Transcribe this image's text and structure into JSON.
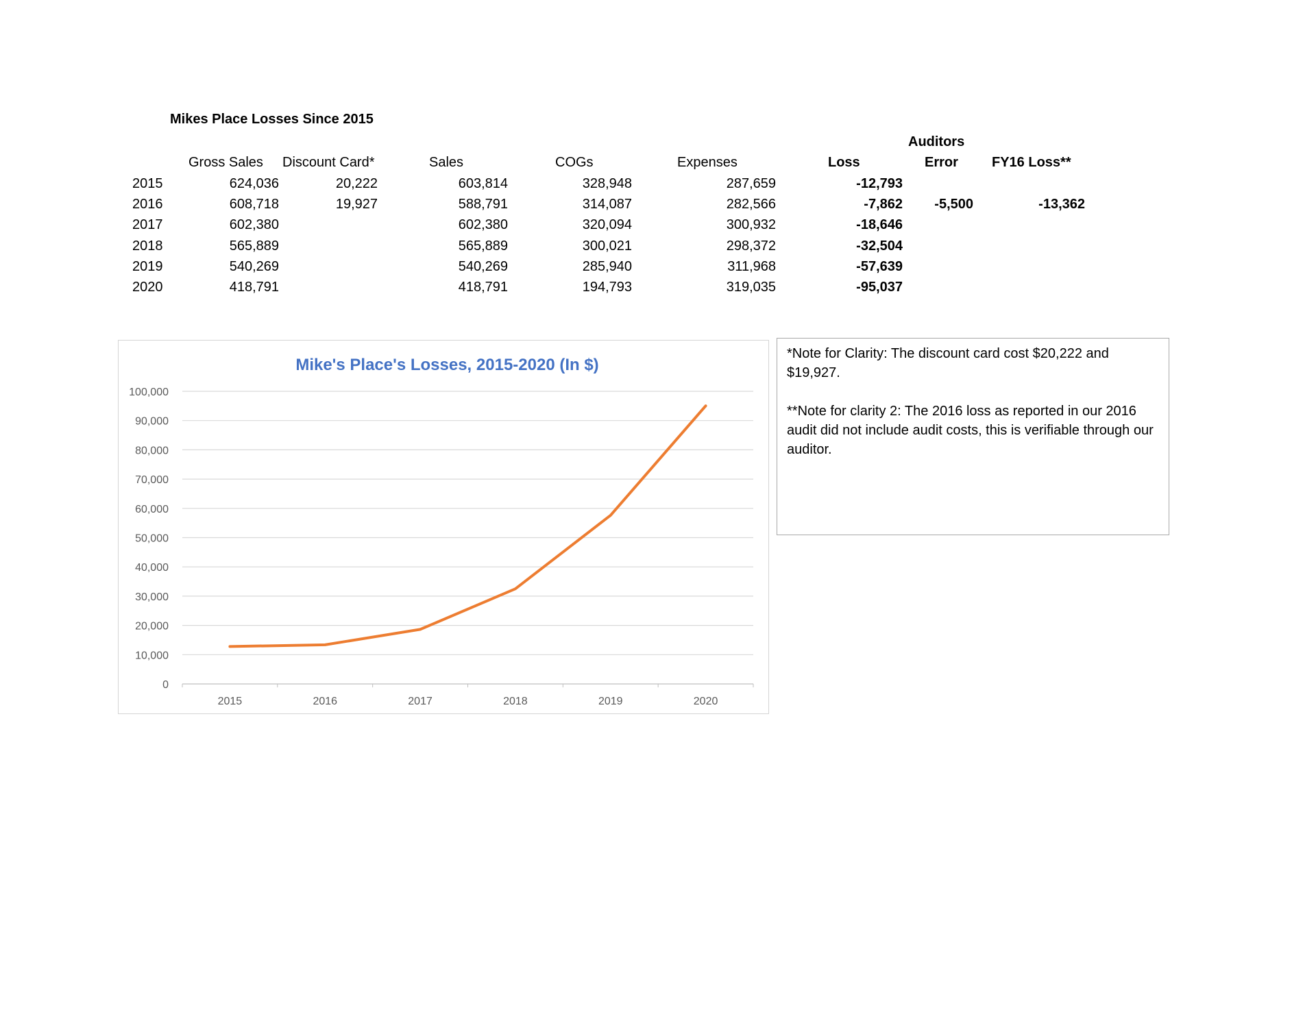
{
  "sheet": {
    "title": "Mikes Place Losses Since 2015",
    "header_top": {
      "auditors": "Auditors"
    },
    "headers": {
      "gross_sales": "Gross Sales",
      "discount_card": "Discount Card*",
      "sales": "Sales",
      "cogs": "COGs",
      "expenses": "Expenses",
      "loss": "Loss",
      "error": "Error",
      "fy16": "FY16 Loss**"
    },
    "rows": [
      {
        "year": "2015",
        "gross_sales": "624,036",
        "discount_card": "20,222",
        "sales": "603,814",
        "cogs": "328,948",
        "expenses": "287,659",
        "loss": "-12,793",
        "error": "",
        "fy16": ""
      },
      {
        "year": "2016",
        "gross_sales": "608,718",
        "discount_card": "19,927",
        "sales": "588,791",
        "cogs": "314,087",
        "expenses": "282,566",
        "loss": "-7,862",
        "error": "-5,500",
        "fy16": "-13,362"
      },
      {
        "year": "2017",
        "gross_sales": "602,380",
        "discount_card": "",
        "sales": "602,380",
        "cogs": "320,094",
        "expenses": "300,932",
        "loss": "-18,646",
        "error": "",
        "fy16": ""
      },
      {
        "year": "2018",
        "gross_sales": "565,889",
        "discount_card": "",
        "sales": "565,889",
        "cogs": "300,021",
        "expenses": "298,372",
        "loss": "-32,504",
        "error": "",
        "fy16": ""
      },
      {
        "year": "2019",
        "gross_sales": "540,269",
        "discount_card": "",
        "sales": "540,269",
        "cogs": "285,940",
        "expenses": "311,968",
        "loss": "-57,639",
        "error": "",
        "fy16": ""
      },
      {
        "year": "2020",
        "gross_sales": "418,791",
        "discount_card": "",
        "sales": "418,791",
        "cogs": "194,793",
        "expenses": "319,035",
        "loss": "-95,037",
        "error": "",
        "fy16": ""
      }
    ]
  },
  "notes": {
    "note1": "*Note for Clarity: The discount card cost $20,222 and $19,927.",
    "note2": "**Note for clarity 2: The 2016 loss as reported in our 2016 audit did not include audit costs, this is verifiable through our auditor."
  },
  "chart_data": {
    "type": "line",
    "title": "Mike's Place's Losses, 2015-2020 (In $)",
    "xlabel": "",
    "ylabel": "",
    "categories": [
      "2015",
      "2016",
      "2017",
      "2018",
      "2019",
      "2020"
    ],
    "series": [
      {
        "values": [
          12793,
          13362,
          18646,
          32504,
          57639,
          95037
        ],
        "color": "#ED7D31"
      }
    ],
    "ylim": [
      0,
      100000
    ],
    "yticks": [
      0,
      10000,
      20000,
      30000,
      40000,
      50000,
      60000,
      70000,
      80000,
      90000,
      100000
    ],
    "ytick_labels": [
      "0",
      "10,000",
      "20,000",
      "30,000",
      "40,000",
      "50,000",
      "60,000",
      "70,000",
      "80,000",
      "90,000",
      "100,000"
    ],
    "grid": true,
    "legend": "none",
    "title_color": "#4472C4"
  }
}
